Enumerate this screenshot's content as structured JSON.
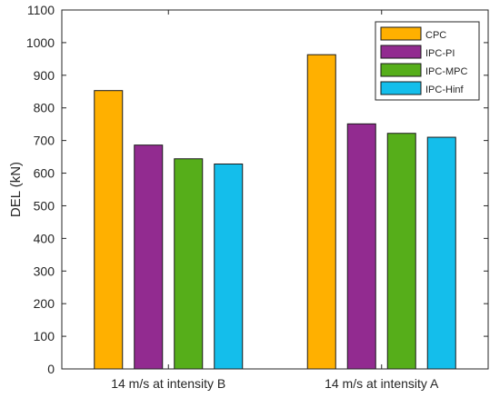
{
  "chart_data": {
    "type": "bar",
    "categories": [
      "14 m/s at intensity B",
      "14 m/s at intensity A"
    ],
    "series": [
      {
        "name": "CPC",
        "color": "#FFB000",
        "values": [
          853,
          963
        ]
      },
      {
        "name": "IPC-PI",
        "color": "#922B90",
        "values": [
          686,
          751
        ]
      },
      {
        "name": "IPC-MPC",
        "color": "#56AE1A",
        "values": [
          644,
          722
        ]
      },
      {
        "name": "IPC-Hinf",
        "color": "#14BEEB",
        "values": [
          628,
          710
        ]
      }
    ],
    "ylabel": "DEL (kN)",
    "xlabel": "",
    "title": "",
    "ylim": [
      0,
      1100
    ],
    "yticks": [
      0,
      100,
      200,
      300,
      400,
      500,
      600,
      700,
      800,
      900,
      1000,
      1100
    ],
    "grid": false,
    "legend_position": "top-right"
  }
}
